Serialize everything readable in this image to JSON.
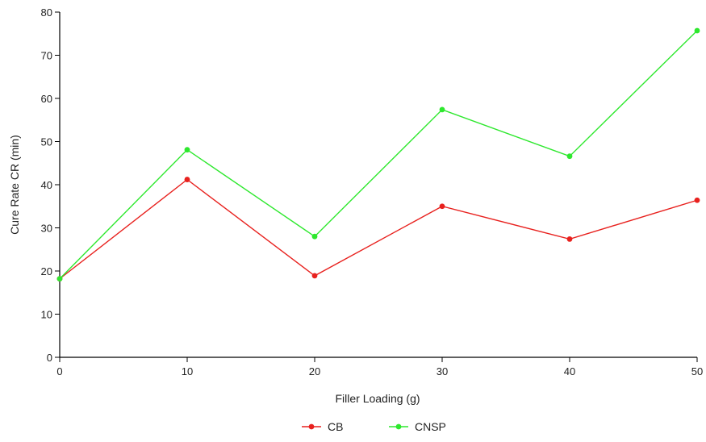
{
  "chart_data": {
    "type": "line",
    "title": "",
    "xlabel": "Filler Loading (g)",
    "ylabel": "Cure Rate CR (min)",
    "xlim": [
      0,
      50
    ],
    "ylim": [
      0,
      80
    ],
    "x_ticks": [
      0,
      10,
      20,
      30,
      40,
      50
    ],
    "y_ticks": [
      0,
      10,
      20,
      30,
      40,
      50,
      60,
      70,
      80
    ],
    "grid": false,
    "legend_position": "bottom-center",
    "x": [
      0,
      10,
      20,
      30,
      40,
      50
    ],
    "series": [
      {
        "name": "CB",
        "color": "#e8211e",
        "values": [
          18.2,
          41.2,
          18.9,
          35.0,
          27.4,
          36.4
        ]
      },
      {
        "name": "CNSP",
        "color": "#2ee82e",
        "values": [
          18.2,
          48.1,
          28.0,
          57.4,
          46.6,
          75.7
        ]
      }
    ]
  }
}
